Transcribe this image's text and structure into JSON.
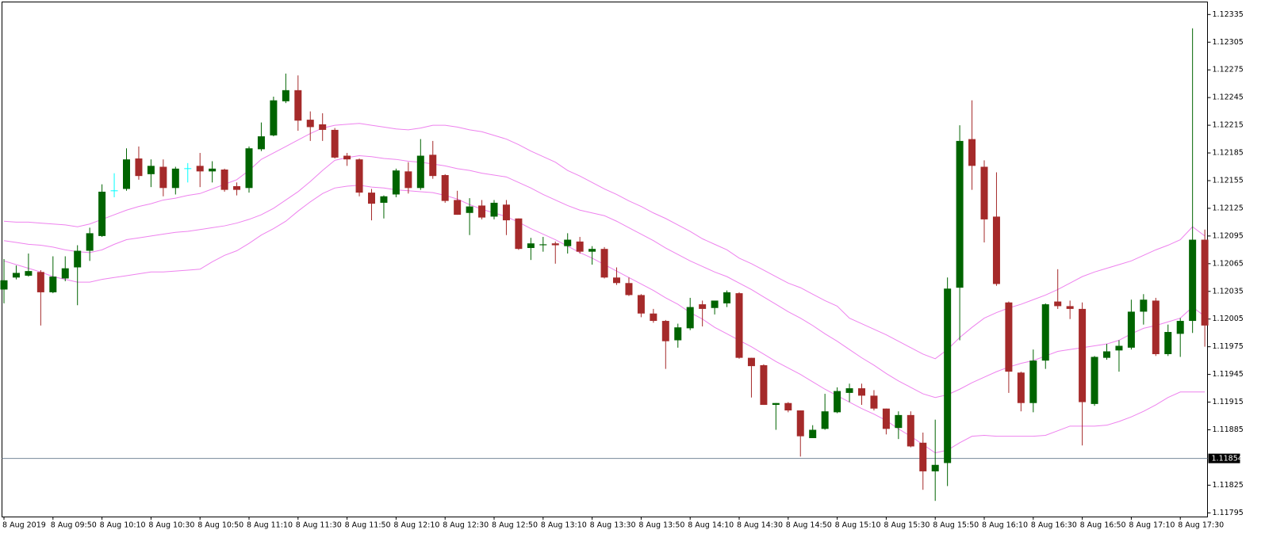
{
  "chart_data": {
    "type": "candlestick",
    "categories": [
      "8 Aug 2019",
      null,
      null,
      null,
      "8 Aug 09:50",
      null,
      null,
      null,
      "8 Aug 10:10",
      null,
      null,
      null,
      "8 Aug 10:30",
      null,
      null,
      null,
      "8 Aug 10:50",
      null,
      null,
      null,
      "8 Aug 11:10",
      null,
      null,
      null,
      "8 Aug 11:30",
      null,
      null,
      null,
      "8 Aug 11:50",
      null,
      null,
      null,
      "8 Aug 12:10",
      null,
      null,
      null,
      "8 Aug 12:30",
      null,
      null,
      null,
      "8 Aug 12:50",
      null,
      null,
      null,
      "8 Aug 13:10",
      null,
      null,
      null,
      "8 Aug 13:30",
      null,
      null,
      null,
      "8 Aug 13:50",
      null,
      null,
      null,
      "8 Aug 14:10",
      null,
      null,
      null,
      "8 Aug 14:30",
      null,
      null,
      null,
      "8 Aug 14:50",
      null,
      null,
      null,
      "8 Aug 15:10",
      null,
      null,
      null,
      "8 Aug 15:30",
      null,
      null,
      null,
      "8 Aug 15:50",
      null,
      null,
      null,
      "8 Aug 16:10",
      null,
      null,
      null,
      "8 Aug 16:30",
      null,
      null,
      null,
      "8 Aug 16:50",
      null,
      null,
      null,
      "8 Aug 17:10",
      null,
      null,
      null,
      "8 Aug 17:30",
      null,
      null
    ],
    "open": [
      1.12037,
      1.1205,
      1.12052,
      1.12056,
      1.12034,
      1.12049,
      1.12061,
      1.12079,
      1.12095,
      1.12144,
      1.12146,
      1.12179,
      1.12162,
      1.1217,
      1.12147,
      1.12168,
      1.12171,
      1.12165,
      1.12167,
      1.12149,
      1.12147,
      1.12189,
      1.12204,
      1.12241,
      1.12253,
      1.12221,
      1.12216,
      1.1221,
      1.12182,
      1.12178,
      1.12142,
      1.12131,
      1.1214,
      1.12165,
      1.12147,
      1.12183,
      1.12161,
      1.12134,
      1.1212,
      1.12128,
      1.12116,
      1.12129,
      1.12114,
      1.12082,
      1.12085,
      1.12087,
      1.12084,
      1.12089,
      1.12078,
      1.12081,
      1.1205,
      1.12044,
      1.12031,
      1.12011,
      1.12003,
      1.11982,
      1.11995,
      1.12021,
      1.12017,
      1.12022,
      1.12033,
      1.11963,
      1.11955,
      1.11912,
      1.11914,
      1.11906,
      1.11876,
      1.11886,
      1.11904,
      1.11925,
      1.1193,
      1.11922,
      1.11908,
      1.11887,
      1.11901,
      1.11871,
      1.1184,
      1.11849,
      1.12039,
      1.122,
      1.1217,
      1.12116,
      1.12023,
      1.11947,
      1.11914,
      1.1196,
      1.12024,
      1.12019,
      1.12016,
      1.11913,
      1.11963,
      1.11971,
      1.11974,
      1.12013,
      1.12025,
      1.11967,
      1.11989,
      1.12003,
      1.12091
    ],
    "high": [
      1.1207,
      1.12063,
      1.12076,
      1.12058,
      1.12073,
      1.12073,
      1.12085,
      1.12104,
      1.12151,
      1.12163,
      1.1219,
      1.12192,
      1.12178,
      1.12178,
      1.1217,
      1.12174,
      1.12185,
      1.12176,
      1.12168,
      1.12153,
      1.12192,
      1.12218,
      1.12246,
      1.12271,
      1.12269,
      1.1223,
      1.12228,
      1.12212,
      1.12185,
      1.12179,
      1.12146,
      1.12139,
      1.12168,
      1.12175,
      1.122,
      1.12198,
      1.12162,
      1.12144,
      1.12136,
      1.12134,
      1.12134,
      1.12134,
      1.12114,
      1.12093,
      1.12094,
      1.12089,
      1.12098,
      1.12094,
      1.12084,
      1.12083,
      1.12061,
      1.1205,
      1.12032,
      1.12016,
      1.12004,
      1.12,
      1.12028,
      1.12025,
      1.12024,
      1.12036,
      1.12034,
      1.11963,
      1.11956,
      1.11914,
      1.11915,
      1.11906,
      1.1189,
      1.11924,
      1.11931,
      1.11935,
      1.11935,
      1.11928,
      1.11908,
      1.11905,
      1.11905,
      1.11882,
      1.11896,
      1.1205,
      1.12215,
      1.12242,
      1.12177,
      1.12164,
      1.12024,
      1.11948,
      1.11972,
      1.12022,
      1.12059,
      1.12025,
      1.12023,
      1.11965,
      1.11978,
      1.11982,
      1.12026,
      1.12032,
      1.12028,
      1.11999,
      1.12006,
      1.1232,
      1.12102
    ],
    "low": [
      1.12022,
      1.12048,
      1.12051,
      1.11998,
      1.12033,
      1.12046,
      1.1202,
      1.12068,
      1.12094,
      1.12137,
      1.12144,
      1.12156,
      1.12148,
      1.12138,
      1.1214,
      1.12153,
      1.12148,
      1.12153,
      1.12143,
      1.12139,
      1.12142,
      1.12187,
      1.12203,
      1.12239,
      1.12209,
      1.12198,
      1.12198,
      1.12179,
      1.12171,
      1.12138,
      1.12112,
      1.12114,
      1.12137,
      1.12141,
      1.12145,
      1.12157,
      1.12131,
      1.12118,
      1.12096,
      1.12113,
      1.12113,
      1.12096,
      1.1208,
      1.12069,
      1.12078,
      1.12065,
      1.12076,
      1.12076,
      1.12064,
      1.12049,
      1.12042,
      1.1203,
      1.12007,
      1.12001,
      1.11951,
      1.11974,
      1.11993,
      1.11997,
      1.1201,
      1.12018,
      1.11962,
      1.1192,
      1.11912,
      1.11885,
      1.11904,
      1.11856,
      1.11876,
      1.11885,
      1.11903,
      1.11915,
      1.11912,
      1.11906,
      1.1188,
      1.11875,
      1.11866,
      1.1182,
      1.11808,
      1.11824,
      1.11982,
      1.12145,
      1.12088,
      1.12041,
      1.11925,
      1.11905,
      1.11904,
      1.11951,
      1.12016,
      1.12005,
      1.11868,
      1.11911,
      1.11961,
      1.11948,
      1.11972,
      1.11999,
      1.11965,
      1.11965,
      1.11964,
      1.1199,
      1.11975
    ],
    "close": [
      1.12047,
      1.12055,
      1.12057,
      1.12034,
      1.12051,
      1.1206,
      1.12079,
      1.12098,
      1.12143,
      1.12144,
      1.12178,
      1.1216,
      1.12171,
      1.12147,
      1.12168,
      1.12168,
      1.12165,
      1.12168,
      1.12145,
      1.12145,
      1.1219,
      1.12203,
      1.12242,
      1.12253,
      1.1222,
      1.12213,
      1.1221,
      1.1218,
      1.12178,
      1.12142,
      1.1213,
      1.12138,
      1.12166,
      1.12147,
      1.12182,
      1.1216,
      1.12133,
      1.12118,
      1.12127,
      1.12115,
      1.12131,
      1.12112,
      1.12081,
      1.12087,
      1.12086,
      1.12085,
      1.12091,
      1.12078,
      1.12081,
      1.1205,
      1.12044,
      1.12031,
      1.12011,
      1.12003,
      1.11981,
      1.11996,
      1.12018,
      1.12016,
      1.12025,
      1.12034,
      1.11963,
      1.11954,
      1.11912,
      1.11914,
      1.11906,
      1.11878,
      1.11885,
      1.11905,
      1.11927,
      1.1193,
      1.11922,
      1.11908,
      1.11886,
      1.11901,
      1.11867,
      1.1184,
      1.11847,
      1.12038,
      1.12198,
      1.12171,
      1.12113,
      1.12043,
      1.11948,
      1.11914,
      1.1196,
      1.12021,
      1.12019,
      1.12016,
      1.11915,
      1.11964,
      1.1197,
      1.11976,
      1.12013,
      1.12026,
      1.11967,
      1.11991,
      1.12003,
      1.12091,
      1.11998
    ],
    "up_color": "#006400",
    "down_color": "#a52a2a",
    "doji_color": "#00ffff",
    "overlays": [
      {
        "color": "#ee82ee",
        "values": [
          1.12111,
          1.1211,
          1.1211,
          1.12109,
          1.12108,
          1.12107,
          1.12105,
          1.12108,
          1.12113,
          1.12118,
          1.12123,
          1.12127,
          1.1213,
          1.12134,
          1.12136,
          1.12139,
          1.12141,
          1.12146,
          1.12151,
          1.12156,
          1.12166,
          1.12178,
          1.12185,
          1.12192,
          1.12199,
          1.12206,
          1.12212,
          1.12215,
          1.12216,
          1.12217,
          1.12215,
          1.12213,
          1.12211,
          1.1221,
          1.12212,
          1.12215,
          1.12215,
          1.12213,
          1.1221,
          1.12208,
          1.12204,
          1.122,
          1.12194,
          1.12187,
          1.12181,
          1.12175,
          1.12166,
          1.1216,
          1.12153,
          1.12146,
          1.1214,
          1.12133,
          1.12127,
          1.1212,
          1.12114,
          1.12107,
          1.121,
          1.12092,
          1.12086,
          1.1208,
          1.12071,
          1.12065,
          1.12058,
          1.12051,
          1.12044,
          1.12039,
          1.12032,
          1.12025,
          1.12019,
          1.12006,
          1.12,
          1.11994,
          1.11988,
          1.11981,
          1.11974,
          1.11967,
          1.11962,
          1.11972,
          1.11985,
          1.11996,
          1.12006,
          1.12012,
          1.12017,
          1.12021,
          1.12026,
          1.12031,
          1.12037,
          1.12044,
          1.12051,
          1.12056,
          1.1206,
          1.12064,
          1.12068,
          1.12074,
          1.1208,
          1.12085,
          1.12091,
          1.12105,
          1.12095
        ]
      },
      {
        "color": "#ee82ee",
        "values": [
          1.1209,
          1.12088,
          1.12086,
          1.12085,
          1.12083,
          1.1208,
          1.12078,
          1.12077,
          1.1208,
          1.12086,
          1.12091,
          1.12093,
          1.12095,
          1.12097,
          1.12099,
          1.121,
          1.12102,
          1.12104,
          1.12106,
          1.12109,
          1.12113,
          1.12118,
          1.12125,
          1.12134,
          1.12143,
          1.12154,
          1.12166,
          1.12177,
          1.1218,
          1.12182,
          1.12181,
          1.12179,
          1.12178,
          1.12176,
          1.12175,
          1.12173,
          1.12171,
          1.12168,
          1.12166,
          1.12163,
          1.12161,
          1.12159,
          1.12153,
          1.12147,
          1.1214,
          1.12134,
          1.12128,
          1.12123,
          1.1212,
          1.12117,
          1.12111,
          1.12104,
          1.12097,
          1.1209,
          1.12082,
          1.12075,
          1.12068,
          1.12062,
          1.12056,
          1.12051,
          1.12044,
          1.12037,
          1.12029,
          1.12021,
          1.12013,
          1.12006,
          1.11998,
          1.11989,
          1.11981,
          1.11972,
          1.11963,
          1.11955,
          1.11946,
          1.11938,
          1.11931,
          1.11924,
          1.1192,
          1.11923,
          1.11929,
          1.11936,
          1.11942,
          1.11948,
          1.11953,
          1.11957,
          1.1196,
          1.11965,
          1.1197,
          1.11972,
          1.11974,
          1.11976,
          1.11978,
          1.11982,
          1.11989,
          1.11995,
          1.11998,
          1.12002,
          1.12006,
          1.12018,
          1.12008
        ]
      },
      {
        "color": "#ee82ee",
        "values": [
          1.12068,
          1.12064,
          1.1206,
          1.12056,
          1.12051,
          1.12048,
          1.12045,
          1.12045,
          1.12048,
          1.1205,
          1.12052,
          1.12054,
          1.12056,
          1.12056,
          1.12057,
          1.12058,
          1.12059,
          1.12067,
          1.12074,
          1.12079,
          1.12087,
          1.12096,
          1.12103,
          1.12111,
          1.12122,
          1.12132,
          1.12141,
          1.12147,
          1.12149,
          1.1215,
          1.12148,
          1.12147,
          1.12145,
          1.12144,
          1.12143,
          1.12142,
          1.12139,
          1.12135,
          1.12129,
          1.12124,
          1.1212,
          1.12116,
          1.1211,
          1.12103,
          1.12097,
          1.12091,
          1.12084,
          1.12077,
          1.12071,
          1.12064,
          1.12057,
          1.1205,
          1.12043,
          1.12036,
          1.12028,
          1.12021,
          1.12012,
          1.12005,
          1.11996,
          1.11989,
          1.11982,
          1.11975,
          1.11967,
          1.11959,
          1.11952,
          1.11945,
          1.11937,
          1.11929,
          1.11922,
          1.11915,
          1.11908,
          1.11902,
          1.11895,
          1.11886,
          1.11878,
          1.11869,
          1.1186,
          1.11863,
          1.11871,
          1.11878,
          1.11879,
          1.11878,
          1.11878,
          1.11878,
          1.11878,
          1.11879,
          1.11884,
          1.11889,
          1.11889,
          1.11889,
          1.1189,
          1.11894,
          1.11899,
          1.11905,
          1.11912,
          1.1192,
          1.11926,
          1.11926,
          1.11926
        ]
      }
    ],
    "price_line": {
      "value": 1.11854,
      "color": "#778899"
    },
    "ylim": [
      1.11791,
      1.12349
    ],
    "yticks": [
      1.12335,
      1.12305,
      1.12275,
      1.12245,
      1.12215,
      1.12185,
      1.12155,
      1.12125,
      1.12095,
      1.12065,
      1.12035,
      1.12005,
      1.11975,
      1.11945,
      1.11915,
      1.11885,
      1.11825,
      1.11795
    ]
  }
}
